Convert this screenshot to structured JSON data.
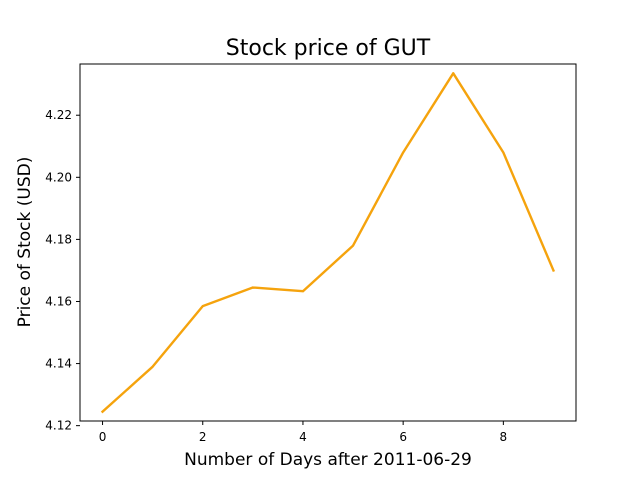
{
  "chart_data": {
    "type": "line",
    "title": "Stock price of GUT",
    "xlabel": "Number of Days after 2011-06-29",
    "ylabel": "Price of Stock (USD)",
    "x": [
      0,
      1,
      2,
      3,
      4,
      5,
      6,
      7,
      8,
      9
    ],
    "series": [
      {
        "values": [
          4.1245,
          4.139,
          4.1585,
          4.1645,
          4.1633,
          4.178,
          4.208,
          4.2335,
          4.208,
          4.17
        ],
        "color": "#f5a30d"
      }
    ],
    "xlim": [
      -0.45,
      9.45
    ],
    "ylim": [
      4.1215,
      4.2365
    ],
    "xticks": [
      0,
      2,
      4,
      6,
      8
    ],
    "yticks": [
      "4.12",
      "4.14",
      "4.16",
      "4.18",
      "4.20",
      "4.22"
    ],
    "grid": false,
    "legend": "none"
  }
}
